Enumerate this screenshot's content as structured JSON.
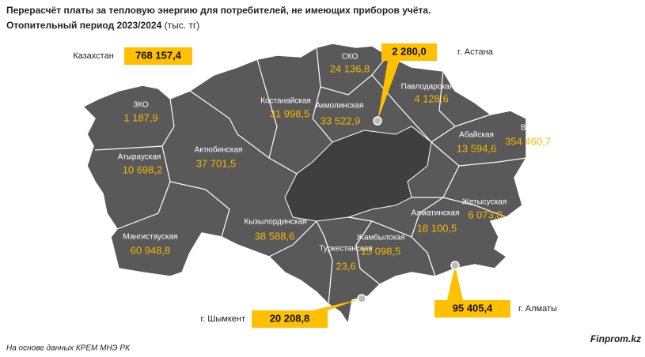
{
  "header": {
    "title": "Перерасчёт платы за тепловую энергию для потребителей, не имеющих приборов учёта.",
    "subtitle": "Отопительный период 2023/2024",
    "unit": "(тыс. тг)"
  },
  "total": {
    "label": "Казахстан",
    "value": "768 157,4"
  },
  "regions": [
    {
      "name": "ЗКО",
      "value": "1 187,9"
    },
    {
      "name": "Атырауская",
      "value": "10 698,2"
    },
    {
      "name": "Актюбинская",
      "value": "37 701,5"
    },
    {
      "name": "Мангистауская",
      "value": "60 948,8"
    },
    {
      "name": "Костанайская",
      "value": "31 998,5"
    },
    {
      "name": "СКО",
      "value": "24 136,8"
    },
    {
      "name": "Акмолинская",
      "value": "33 522,9"
    },
    {
      "name": "Павлодарская",
      "value": "4 128,6"
    },
    {
      "name": "Абайская",
      "value": "13 594,6"
    },
    {
      "name": "ВКО",
      "value": "354 460,7"
    },
    {
      "name": "Жетысуская",
      "value": "6 073,8"
    },
    {
      "name": "Алматинская",
      "value": "18 100,5"
    },
    {
      "name": "Кызылординская",
      "value": "38 588,6"
    },
    {
      "name": "Туркестанская",
      "value": "23,6"
    },
    {
      "name": "Жамбылская",
      "value": "15 098,5"
    }
  ],
  "cities": [
    {
      "name": "г. Астана",
      "value": "2 280,0"
    },
    {
      "name": "г. Шымкент",
      "value": "20 208,8"
    },
    {
      "name": "г. Алматы",
      "value": "95 405,4"
    }
  ],
  "footer": {
    "source": "На основе данных КРЕМ МНЭ РК",
    "brand": "Finprom.kz"
  }
}
